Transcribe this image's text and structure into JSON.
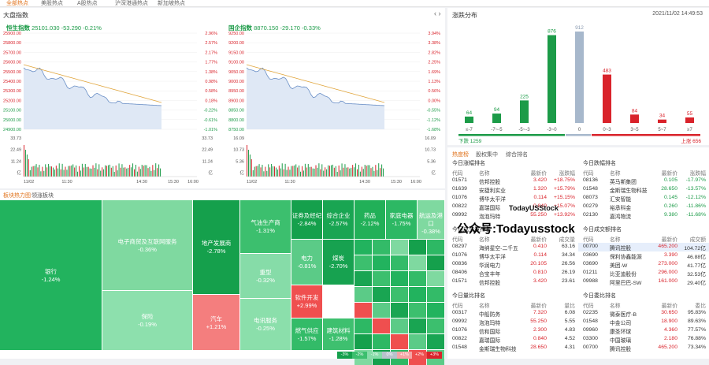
{
  "top_tabs": [
    {
      "label": "全部热点",
      "active": true
    },
    {
      "label": "美股热点",
      "active": false
    },
    {
      "label": "A股热点",
      "active": false
    },
    {
      "label": "沪深港通热点",
      "active": false
    },
    {
      "label": "新加坡热点",
      "active": false
    }
  ],
  "market": {
    "title": "大盘指数",
    "hsi": {
      "name": "恒生指数",
      "value": "25101.030",
      "change": "-53.290",
      "pct": "-0.21%",
      "y_left": [
        "25900.00",
        "25800.00",
        "25700.00",
        "25600.00",
        "25500.00",
        "25400.00",
        "25300.00",
        "25200.00",
        "25100.00",
        "25000.00",
        "24900.00"
      ],
      "y_right": [
        "2.96%",
        "2.57%",
        "2.17%",
        "1.77%",
        "1.38%",
        "0.98%",
        "0.58%",
        "0.18%",
        "-0.22%",
        "-0.61%",
        "-1.01%"
      ],
      "vol_left": [
        "33.73",
        "22.49",
        "11.24",
        "亿"
      ],
      "vol_right": [
        "33.73",
        "22.49",
        "11.24",
        "亿"
      ],
      "x_ticks": [
        "11/02",
        "11:30",
        "14:30",
        "15:30",
        "16:00"
      ]
    },
    "hscei": {
      "name": "国企指数",
      "value": "8870.150",
      "change": "-29.170",
      "pct": "-0.33%",
      "y_left": [
        "9250.00",
        "9200.00",
        "9150.00",
        "9100.00",
        "9050.00",
        "9000.00",
        "8950.00",
        "8900.00",
        "8850.00",
        "8800.00",
        "8750.00"
      ],
      "y_right": [
        "3.94%",
        "3.38%",
        "2.82%",
        "2.25%",
        "1.69%",
        "1.13%",
        "0.56%",
        "0.00%",
        "-0.55%",
        "-1.12%",
        "-1.68%"
      ],
      "vol_left": [
        "16.09",
        "10.73",
        "5.36",
        "亿"
      ],
      "vol_right": [
        "16.09",
        "10.73",
        "5.36",
        "亿"
      ],
      "x_ticks": [
        "11/02",
        "11:30",
        "14:30",
        "15:30",
        "16:00"
      ]
    }
  },
  "distribution": {
    "title": "涨跌分布",
    "datetime": "2021/11/02 14:49:53",
    "bars": [
      {
        "label": "≤-7",
        "value": 64,
        "color": "#1c9b48"
      },
      {
        "label": "-7~-5",
        "value": 94,
        "color": "#1c9b48"
      },
      {
        "label": "-5~-3",
        "value": 225,
        "color": "#1c9b48"
      },
      {
        "label": "-3~0",
        "value": 876,
        "color": "#1c9b48"
      },
      {
        "label": "0",
        "value": 912,
        "color": "#a7b8cc"
      },
      {
        "label": "0~3",
        "value": 483,
        "color": "#d9232b"
      },
      {
        "label": "3~5",
        "value": 84,
        "color": "#d9232b"
      },
      {
        "label": "5~7",
        "value": 34,
        "color": "#d9232b"
      },
      {
        "label": "≥7",
        "value": 55,
        "color": "#d9232b"
      }
    ],
    "down_label": "下跌 1259",
    "up_label": "上涨 656"
  },
  "heatmap": {
    "tab1": "板块热力图",
    "tab2": "领涨板块",
    "cells": [
      {
        "name": "银行",
        "pct": "-1.24%",
        "color": "#22b35e"
      },
      {
        "name": "电子商贸及互联网服务",
        "pct": "-0.36%",
        "color": "#7fd9a0"
      },
      {
        "name": "保险",
        "pct": "-0.19%",
        "color": "#8de0ad"
      },
      {
        "name": "地产发展商",
        "pct": "-2.78%",
        "color": "#15a04c"
      },
      {
        "name": "汽车",
        "pct": "+1.21%",
        "color": "#f47e7e"
      },
      {
        "name": "气油生产商",
        "pct": "-1.31%",
        "color": "#3cbf6e"
      },
      {
        "name": "重型",
        "pct": "-0.32%",
        "color": "#86dca8"
      },
      {
        "name": "电讯服务",
        "pct": "-0.25%",
        "color": "#8bdfab"
      },
      {
        "name": "证券及经纪",
        "pct": "-2.84%",
        "color": "#15a04c"
      },
      {
        "name": "综合企业",
        "pct": "-2.57%",
        "color": "#19a552"
      },
      {
        "name": "药品",
        "pct": "-2.12%",
        "color": "#22b058"
      },
      {
        "name": "家庭电器",
        "pct": "-1.75%",
        "color": "#2db864"
      },
      {
        "name": "航运及港口",
        "pct": "-0.38%",
        "color": "#7fd9a0"
      },
      {
        "name": "电力",
        "pct": "-0.81%",
        "color": "#5bcb87"
      },
      {
        "name": "煤炭",
        "pct": "-2.70%",
        "color": "#17a250"
      },
      {
        "name": "软件开发",
        "pct": "+2.99%",
        "color": "#ef4f4f"
      },
      {
        "name": "燃气供应",
        "pct": "-1.57%",
        "color": "#33bb68"
      },
      {
        "name": "建筑材料",
        "pct": "-1.28%",
        "color": "#3ec06f"
      }
    ],
    "legend": [
      "-3%",
      "-2%",
      "-1%",
      "0%",
      "+1%",
      "+2%",
      "+3%"
    ]
  },
  "rankings": {
    "tabs": [
      "热度榜",
      "股权集中",
      "综合排名"
    ],
    "watermark": "TodayUSStock",
    "public_account": "公众号:Todayusstock",
    "sections": [
      {
        "left_title": "今日涨幅排名",
        "right_title": "今日跌幅排名",
        "headers": [
          "代码",
          "名称",
          "最新价",
          "涨跌幅"
        ],
        "left": [
          [
            "01571",
            "信邦控股",
            "3.420",
            "+18.75%"
          ],
          [
            "01639",
            "安捷利实业",
            "1.320",
            "+15.79%"
          ],
          [
            "01076",
            "博华太平洋",
            "0.114",
            "+15.15%"
          ],
          [
            "00822",
            "嘉瑞国际",
            "0.840",
            "+15.07%"
          ],
          [
            "09992",
            "泡泡玛特",
            "55.250",
            "+13.92%"
          ]
        ],
        "right": [
          [
            "08136",
            "英马斯集团",
            "0.105",
            "-17.97%"
          ],
          [
            "01548",
            "金斯瑞生物科技",
            "28.650",
            "-13.57%"
          ],
          [
            "08073",
            "汇安智能",
            "0.145",
            "-12.12%"
          ],
          [
            "00279",
            "裕承科金",
            "0.260",
            "-11.86%"
          ],
          [
            "02130",
            "嘉鸿物流",
            "9.380",
            "-11.68%"
          ]
        ]
      },
      {
        "left_title": "今日成交量排名",
        "right_title": "今日成交额排名",
        "headers_left": [
          "代码",
          "名称",
          "最新价",
          "成交量"
        ],
        "headers_right": [
          "代码",
          "名称",
          "最新价",
          "成交额"
        ],
        "left": [
          [
            "08297",
            "海纳星空-二千五",
            "0.410",
            "63.16"
          ],
          [
            "01076",
            "博华太平洋",
            "0.114",
            "34.34"
          ],
          [
            "00836",
            "华润电力",
            "20.105",
            "26.56"
          ],
          [
            "08406",
            "合宝丰年",
            "0.810",
            "26.19"
          ],
          [
            "01571",
            "信邦控股",
            "3.420",
            "23.61"
          ]
        ],
        "right": [
          [
            "00700",
            "腾讯控股",
            "465.200",
            "104.72亿"
          ],
          [
            "03690",
            "保利协鑫能源",
            "3.390",
            "46.88亿"
          ],
          [
            "03690",
            "美团-W",
            "273.000",
            "41.77亿"
          ],
          [
            "01211",
            "比亚迪股份",
            "296.000",
            "32.53亿"
          ],
          [
            "09988",
            "阿里巴巴-SW",
            "161.000",
            "29.40亿"
          ]
        ]
      },
      {
        "left_title": "今日量比排名",
        "right_title": "今日委比排名",
        "headers_left": [
          "代码",
          "名称",
          "最新价",
          "量比"
        ],
        "headers_right": [
          "代码",
          "名称",
          "最新价",
          "委比"
        ],
        "left": [
          [
            "00317",
            "中船防务",
            "7.320",
            "6.08"
          ],
          [
            "09992",
            "泡泡玛特",
            "55.250",
            "5.55"
          ],
          [
            "01076",
            "信和国际",
            "2.300",
            "4.83"
          ],
          [
            "00822",
            "嘉瑞国际",
            "0.840",
            "4.52"
          ],
          [
            "01548",
            "金斯瑞生物科技",
            "28.650",
            "4.31"
          ]
        ],
        "right": [
          [
            "02235",
            "微泰医疗-B",
            "30.650",
            "95.83%"
          ],
          [
            "01548",
            "中金公司",
            "18.900",
            "89.63%"
          ],
          [
            "09960",
            "康圣环球",
            "4.360",
            "77.57%"
          ],
          [
            "03300",
            "中国玻璃",
            "2.180",
            "76.88%"
          ],
          [
            "00700",
            "腾讯控股",
            "465.200",
            "73.34%"
          ]
        ]
      }
    ]
  }
}
